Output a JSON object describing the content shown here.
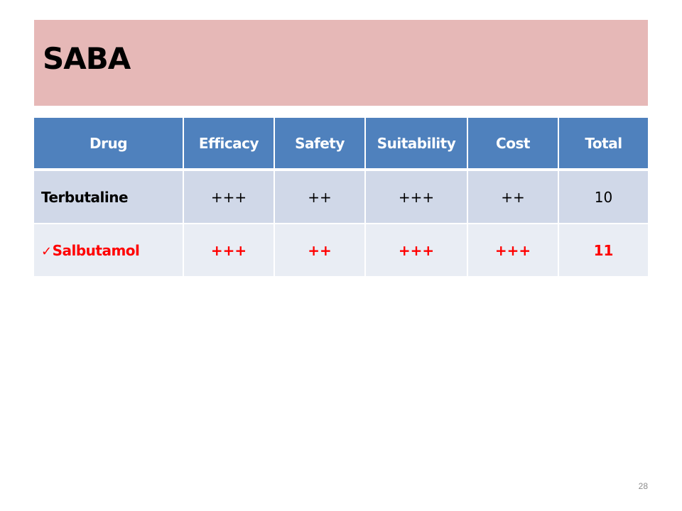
{
  "slide": {
    "title": "SABA",
    "page_number": "28"
  },
  "table": {
    "headers": [
      "Drug",
      "Efficacy",
      "Safety",
      "Suitability",
      "Cost",
      "Total"
    ],
    "rows": [
      {
        "drug": "Terbutaline",
        "efficacy": "+++",
        "safety": "++",
        "suitability": "+++",
        "cost": "++",
        "total": "10",
        "selected": false
      },
      {
        "drug": "Salbutamol",
        "efficacy": "+++",
        "safety": "++",
        "suitability": "+++",
        "cost": "+++",
        "total": "11",
        "selected": true,
        "marker": "✓"
      }
    ]
  },
  "colors": {
    "title_bar": "#e6b8b7",
    "header_bg": "#4f81bd",
    "row_odd_bg": "#d0d8e8",
    "row_even_bg": "#e9edf4",
    "highlight_text": "#ff0000"
  },
  "icons": {
    "selected_marker": "check-icon"
  }
}
